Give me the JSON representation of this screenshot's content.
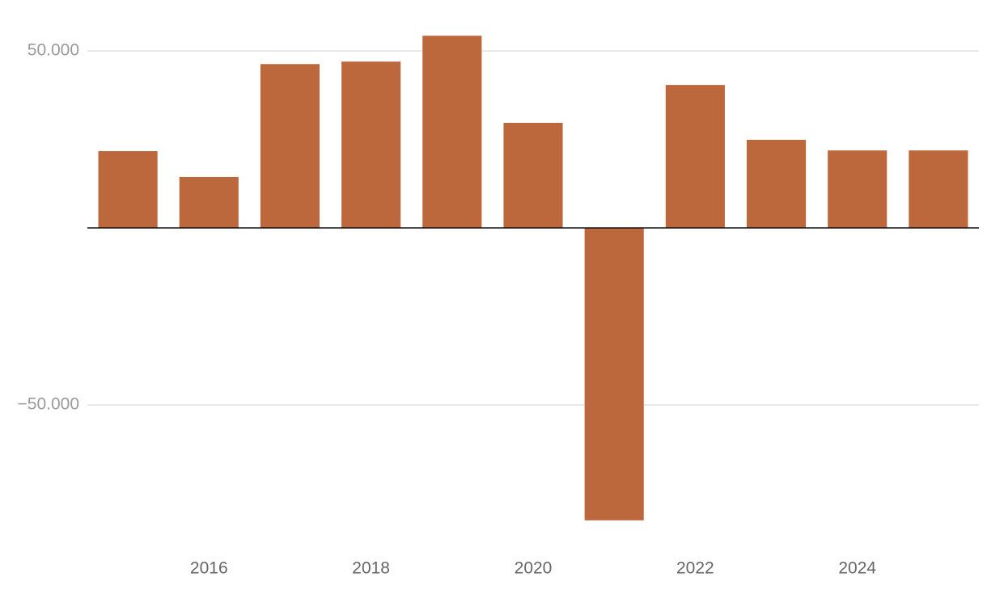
{
  "chart_data": {
    "type": "bar",
    "categories": [
      null,
      "2016",
      null,
      "2018",
      null,
      "2020",
      null,
      "2022",
      null,
      "2024",
      null
    ],
    "values": [
      21700,
      14400,
      46300,
      47000,
      54300,
      29700,
      -82600,
      40400,
      24900,
      21900,
      21900
    ],
    "color": "#bd673d",
    "ylim": [
      -86300,
      64400
    ],
    "yticks": [
      {
        "value": 50000,
        "label": "50.000"
      },
      {
        "value": -50000,
        "label": "−50.000"
      }
    ],
    "grid": true
  }
}
